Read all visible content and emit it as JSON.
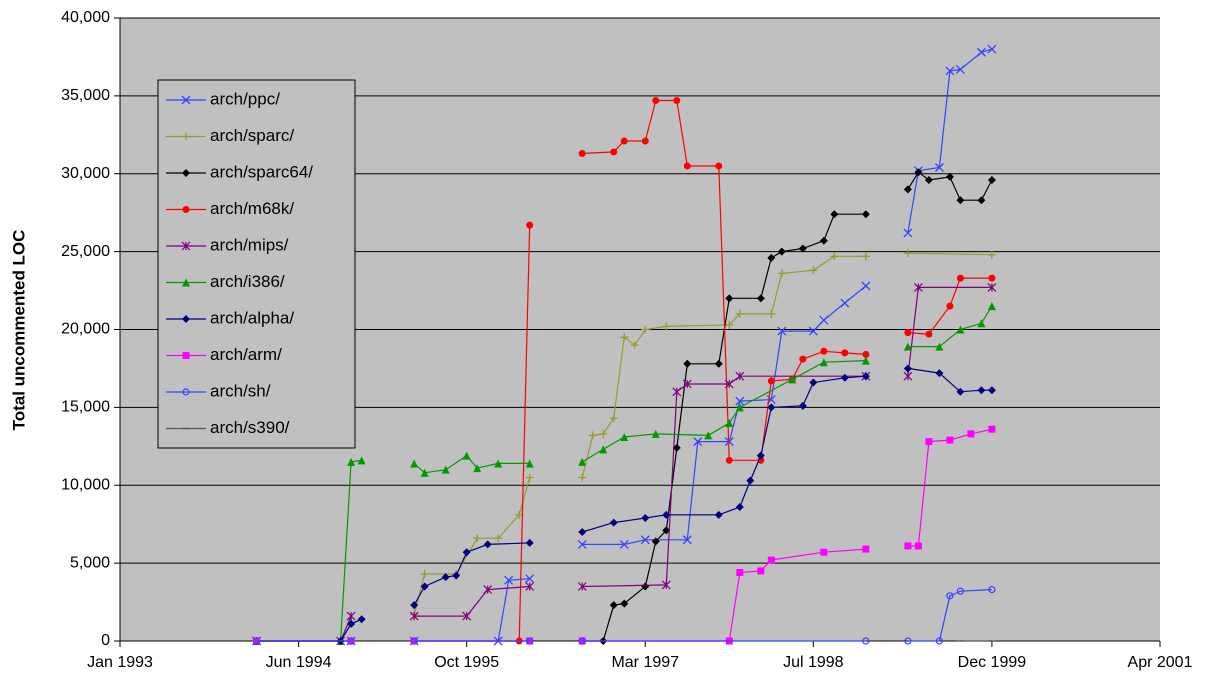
{
  "chart_data": {
    "type": "line",
    "y_label": "Total uncommented LOC",
    "xlim": [
      "1993-01",
      "2001-04"
    ],
    "xticks": [
      {
        "value": "1993-01",
        "label": "Jan 1993"
      },
      {
        "value": "1994-06",
        "label": "Jun 1994"
      },
      {
        "value": "1995-10",
        "label": "Oct 1995"
      },
      {
        "value": "1997-03",
        "label": "Mar 1997"
      },
      {
        "value": "1998-07",
        "label": "Jul 1998"
      },
      {
        "value": "1999-12",
        "label": "Dec 1999"
      },
      {
        "value": "2001-04",
        "label": "Apr 2001"
      }
    ],
    "ylim": [
      0,
      40000
    ],
    "yticks": [
      {
        "value": 0,
        "label": "0"
      },
      {
        "value": 5000,
        "label": "5,000"
      },
      {
        "value": 10000,
        "label": "10,000"
      },
      {
        "value": 15000,
        "label": "15,000"
      },
      {
        "value": 20000,
        "label": "20,000"
      },
      {
        "value": 25000,
        "label": "25,000"
      },
      {
        "value": 30000,
        "label": "30,000"
      },
      {
        "value": 35000,
        "label": "35,000"
      },
      {
        "value": 40000,
        "label": "40,000"
      }
    ],
    "grid": true,
    "series": [
      {
        "name": "arch/ppc/",
        "color": "#3344ff",
        "marker": "x",
        "x": [
          "1994-02",
          "1994-11",
          null,
          "1995-05",
          "1996-01",
          "1996-02",
          "1996-04",
          null,
          "1996-09",
          "1997-01",
          "1997-03",
          "1997-07",
          "1997-08",
          "1997-11",
          "1997-12",
          "1998-03",
          "1998-04",
          "1998-07",
          "1998-08",
          "1998-10",
          "1998-12",
          null,
          "1999-04",
          "1999-05",
          "1999-07",
          "1999-08",
          "1999-09",
          "1999-11",
          "1999-12"
        ],
        "values": [
          0,
          0,
          null,
          0,
          0,
          3900,
          4000,
          null,
          6200,
          6200,
          6500,
          6500,
          12800,
          12800,
          15400,
          15500,
          19900,
          19900,
          20600,
          21700,
          22800,
          null,
          26200,
          30200,
          30400,
          36600,
          36700,
          37800,
          38000
        ]
      },
      {
        "name": "arch/sparc/",
        "color": "#999933",
        "marker": "plus",
        "x": [
          "1994-02",
          "1994-11",
          null,
          "1995-05",
          "1995-06",
          "1995-09",
          "1995-11",
          "1996-01",
          "1996-03",
          "1996-04",
          null,
          "1996-09",
          "1996-10",
          "1996-11",
          "1996-12",
          "1997-01",
          "1997-02",
          "1997-03",
          "1997-05",
          "1997-11",
          "1997-12",
          "1998-03",
          "1998-04",
          "1998-07",
          "1998-09",
          "1998-12",
          null,
          "1999-04",
          "1999-12"
        ],
        "values": [
          0,
          0,
          null,
          1700,
          4300,
          4300,
          6600,
          6600,
          8100,
          10500,
          null,
          10500,
          13200,
          13300,
          14300,
          19500,
          19000,
          20000,
          20200,
          20300,
          21000,
          21000,
          23600,
          23800,
          24700,
          24700,
          null,
          24900,
          24800
        ]
      },
      {
        "name": "arch/sparc64/",
        "color": "#000000",
        "marker": "diamond",
        "x": [
          "1996-09",
          "1996-11",
          "1996-12",
          "1997-01",
          "1997-03",
          "1997-04",
          "1997-05",
          "1997-06",
          "1997-07",
          "1997-10",
          "1997-11",
          "1998-02",
          "1998-03",
          "1998-04",
          "1998-06",
          "1998-08",
          "1998-09",
          "1998-12",
          null,
          "1999-04",
          "1999-05",
          "1999-06",
          "1999-08",
          "1999-09",
          "1999-11",
          "1999-12"
        ],
        "values": [
          0,
          0,
          2300,
          2400,
          3500,
          6400,
          7100,
          12400,
          17800,
          17800,
          22000,
          22000,
          24600,
          25000,
          25200,
          25700,
          27400,
          27400,
          null,
          29000,
          30100,
          29600,
          29800,
          28300,
          28300,
          29600
        ]
      },
      {
        "name": "arch/m68k/",
        "color": "#ff0000",
        "marker": "circle",
        "x": [
          "1995-05",
          "1996-03",
          "1996-04",
          null,
          "1996-09",
          "1996-12",
          "1997-01",
          "1997-03",
          "1997-04",
          "1997-06",
          "1997-07",
          "1997-10",
          "1997-11",
          "1998-02",
          "1998-03",
          "1998-05",
          "1998-06",
          "1998-08",
          "1998-10",
          "1998-12",
          null,
          "1999-04",
          "1999-06",
          "1999-08",
          "1999-09",
          "1999-12"
        ],
        "values": [
          0,
          0,
          26700,
          null,
          31300,
          31400,
          32100,
          32100,
          34700,
          34700,
          30500,
          30500,
          11600,
          11600,
          16700,
          16800,
          18100,
          18600,
          18500,
          18400,
          null,
          19800,
          19700,
          21500,
          23300,
          23300
        ]
      },
      {
        "name": "arch/mips/",
        "color": "#800080",
        "marker": "star",
        "x": [
          "1994-02",
          "1994-10",
          "1994-11",
          null,
          "1995-05",
          "1995-10",
          "1995-12",
          "1996-04",
          null,
          "1996-09",
          "1997-05",
          "1997-06",
          "1997-07",
          "1997-11",
          "1997-12",
          "1998-12",
          null,
          "1999-04",
          "1999-05",
          "1999-12"
        ],
        "values": [
          0,
          0,
          1600,
          null,
          1600,
          1600,
          3300,
          3500,
          null,
          3500,
          3600,
          16000,
          16500,
          16500,
          17000,
          17000,
          null,
          17000,
          22700,
          22700
        ]
      },
      {
        "name": "arch/i386/",
        "color": "#009900",
        "marker": "triangle",
        "x": [
          "1994-02",
          "1994-10",
          "1994-11",
          "1994-12",
          null,
          "1995-05",
          "1995-06",
          "1995-08",
          "1995-10",
          "1995-11",
          "1996-01",
          "1996-04",
          null,
          "1996-09",
          "1996-11",
          "1997-01",
          "1997-04",
          "1997-09",
          "1997-11",
          "1997-12",
          "1998-05",
          "1998-08",
          "1998-12",
          null,
          "1999-04",
          "1999-07",
          "1999-09",
          "1999-11",
          "1999-12"
        ],
        "values": [
          0,
          0,
          11500,
          11600,
          null,
          11400,
          10800,
          11000,
          11900,
          11100,
          11400,
          11400,
          null,
          11500,
          12300,
          13100,
          13300,
          13200,
          14000,
          15000,
          16800,
          17900,
          18000,
          null,
          18900,
          18900,
          20000,
          20400,
          21500
        ]
      },
      {
        "name": "arch/alpha/",
        "color": "#000080",
        "marker": "diamond",
        "x": [
          "1994-02",
          "1994-10",
          "1994-11",
          "1994-12",
          null,
          "1995-05",
          "1995-06",
          "1995-08",
          "1995-09",
          "1995-10",
          "1995-12",
          "1996-04",
          null,
          "1996-09",
          "1996-12",
          "1997-03",
          "1997-05",
          "1997-10",
          "1997-12",
          "1998-01",
          "1998-02",
          "1998-03",
          "1998-06",
          "1998-07",
          "1998-10",
          "1998-12",
          null,
          "1999-04",
          "1999-07",
          "1999-09",
          "1999-11",
          "1999-12"
        ],
        "values": [
          0,
          0,
          1100,
          1400,
          null,
          2300,
          3500,
          4100,
          4200,
          5700,
          6200,
          6300,
          null,
          7000,
          7600,
          7900,
          8100,
          8100,
          8600,
          10300,
          11900,
          15000,
          15100,
          16600,
          16900,
          17000,
          null,
          17500,
          17200,
          16000,
          16100,
          16100
        ]
      },
      {
        "name": "arch/arm/",
        "color": "#ff00ff",
        "marker": "square",
        "x": [
          "1994-02",
          "1994-11",
          null,
          "1995-05",
          "1996-04",
          null,
          "1996-09",
          "1997-11",
          "1997-12",
          "1998-02",
          "1998-03",
          "1998-08",
          "1998-12",
          null,
          "1999-04",
          "1999-05",
          "1999-06",
          "1999-08",
          "1999-10",
          "1999-12"
        ],
        "values": [
          0,
          0,
          null,
          0,
          0,
          null,
          0,
          0,
          4400,
          4500,
          5200,
          5700,
          5900,
          null,
          6100,
          6100,
          12800,
          12900,
          13300,
          13600
        ]
      },
      {
        "name": "arch/sh/",
        "color": "#3344ff",
        "marker": "ocircle",
        "x": [
          "1994-02",
          "1994-11",
          null,
          "1995-05",
          "1996-04",
          null,
          "1996-09",
          "1998-12",
          null,
          "1999-04",
          "1999-07",
          "1999-08",
          "1999-09",
          "1999-12"
        ],
        "values": [
          0,
          0,
          null,
          0,
          0,
          null,
          0,
          0,
          null,
          0,
          0,
          2900,
          3200,
          3300
        ]
      },
      {
        "name": "arch/s390/",
        "color": "#555555",
        "marker": "dash",
        "x": [
          "1999-09",
          "1999-12"
        ],
        "values": [
          0,
          0
        ]
      }
    ]
  }
}
